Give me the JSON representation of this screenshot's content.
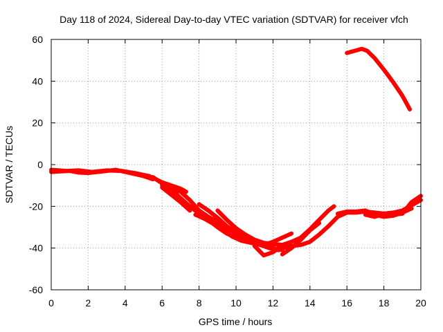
{
  "chart_data": {
    "type": "line",
    "title": "Day 118 of 2024, Sidereal Day-to-day VTEC variation (SDTVAR) for receiver vfch",
    "xlabel": "GPS time / hours",
    "ylabel": "SDTVAR / TECUs",
    "xlim": [
      0,
      20
    ],
    "ylim": [
      -60,
      60
    ],
    "x_ticks": [
      0,
      2,
      4,
      6,
      8,
      10,
      12,
      14,
      16,
      18,
      20
    ],
    "y_ticks": [
      -60,
      -40,
      -20,
      0,
      20,
      40,
      60
    ],
    "grid": true,
    "color": "#ff0000",
    "series": [
      {
        "name": "track-1",
        "points": [
          [
            0.0,
            -3.5
          ],
          [
            0.5,
            -3.2
          ],
          [
            1.0,
            -3.0
          ],
          [
            1.5,
            -3.8
          ],
          [
            2.0,
            -4.0
          ],
          [
            2.5,
            -3.5
          ],
          [
            3.0,
            -3.0
          ],
          [
            3.5,
            -2.5
          ],
          [
            4.0,
            -3.5
          ],
          [
            4.5,
            -4.5
          ],
          [
            5.0,
            -5.5
          ],
          [
            5.5,
            -7.0
          ]
        ]
      },
      {
        "name": "track-2",
        "points": [
          [
            0.0,
            -2.5
          ],
          [
            0.8,
            -3.0
          ],
          [
            1.5,
            -2.8
          ],
          [
            2.2,
            -3.5
          ],
          [
            3.0,
            -2.8
          ],
          [
            3.8,
            -3.0
          ],
          [
            4.5,
            -4.0
          ],
          [
            5.3,
            -5.5
          ],
          [
            6.0,
            -8.5
          ],
          [
            6.5,
            -10.0
          ],
          [
            7.0,
            -11.5
          ],
          [
            7.3,
            -13.0
          ]
        ]
      },
      {
        "name": "track-3",
        "points": [
          [
            5.5,
            -6.0
          ],
          [
            6.0,
            -9.0
          ],
          [
            6.5,
            -12.0
          ],
          [
            7.0,
            -16.0
          ],
          [
            7.5,
            -20.0
          ],
          [
            8.0,
            -23.5
          ],
          [
            8.5,
            -26.5
          ],
          [
            9.0,
            -30.0
          ],
          [
            9.5,
            -33.0
          ],
          [
            10.0,
            -35.0
          ],
          [
            10.5,
            -36.5
          ],
          [
            11.0,
            -37.5
          ],
          [
            11.5,
            -38.0
          ]
        ]
      },
      {
        "name": "track-4",
        "points": [
          [
            6.0,
            -10.0
          ],
          [
            6.5,
            -11.5
          ],
          [
            7.0,
            -13.0
          ],
          [
            7.5,
            -17.0
          ],
          [
            8.0,
            -22.0
          ],
          [
            8.5,
            -25.0
          ],
          [
            9.0,
            -27.5
          ],
          [
            9.5,
            -30.5
          ],
          [
            10.0,
            -33.0
          ],
          [
            10.5,
            -35.5
          ],
          [
            11.0,
            -37.0
          ],
          [
            11.5,
            -38.5
          ],
          [
            12.0,
            -40.0
          ],
          [
            12.5,
            -41.0
          ]
        ]
      },
      {
        "name": "track-5",
        "points": [
          [
            6.0,
            -11.0
          ],
          [
            6.5,
            -14.5
          ],
          [
            7.0,
            -18.0
          ],
          [
            7.5,
            -22.0
          ]
        ]
      },
      {
        "name": "track-6",
        "points": [
          [
            7.8,
            -24.0
          ],
          [
            8.3,
            -26.0
          ],
          [
            8.8,
            -28.5
          ],
          [
            9.3,
            -31.5
          ],
          [
            9.8,
            -34.5
          ],
          [
            10.3,
            -36.5
          ],
          [
            10.8,
            -37.5
          ],
          [
            11.3,
            -38.5
          ],
          [
            11.8,
            -40.0
          ],
          [
            12.3,
            -41.0
          ]
        ]
      },
      {
        "name": "track-7",
        "points": [
          [
            8.0,
            -19.0
          ],
          [
            8.5,
            -22.0
          ],
          [
            9.0,
            -25.5
          ],
          [
            9.5,
            -29.5
          ],
          [
            10.0,
            -32.5
          ],
          [
            10.5,
            -35.0
          ],
          [
            11.0,
            -36.0
          ],
          [
            11.5,
            -37.5
          ],
          [
            12.0,
            -38.0
          ],
          [
            12.5,
            -38.5
          ]
        ]
      },
      {
        "name": "track-8",
        "points": [
          [
            9.0,
            -22.0
          ],
          [
            9.5,
            -26.5
          ],
          [
            10.0,
            -30.5
          ],
          [
            10.5,
            -33.5
          ],
          [
            11.0,
            -36.0
          ],
          [
            11.5,
            -38.0
          ],
          [
            12.0,
            -39.0
          ]
        ]
      },
      {
        "name": "track-9",
        "points": [
          [
            11.0,
            -39.0
          ],
          [
            11.5,
            -43.5
          ],
          [
            12.0,
            -42.0
          ],
          [
            12.5,
            -38.5
          ],
          [
            13.0,
            -37.0
          ],
          [
            13.5,
            -35.0
          ],
          [
            14.0,
            -31.0
          ],
          [
            14.5,
            -26.5
          ],
          [
            15.0,
            -22.0
          ],
          [
            15.3,
            -20.0
          ]
        ]
      },
      {
        "name": "track-10",
        "points": [
          [
            11.5,
            -38.5
          ],
          [
            12.0,
            -37.0
          ],
          [
            12.5,
            -35.0
          ],
          [
            13.0,
            -33.0
          ]
        ]
      },
      {
        "name": "track-11",
        "points": [
          [
            12.5,
            -43.0
          ],
          [
            13.0,
            -40.0
          ],
          [
            13.5,
            -36.0
          ],
          [
            14.0,
            -31.5
          ],
          [
            14.5,
            -28.0
          ]
        ]
      },
      {
        "name": "track-12",
        "points": [
          [
            12.0,
            -41.0
          ],
          [
            12.5,
            -40.0
          ],
          [
            13.0,
            -39.0
          ],
          [
            13.5,
            -38.5
          ],
          [
            14.0,
            -37.0
          ],
          [
            14.5,
            -33.5
          ],
          [
            15.0,
            -29.5
          ],
          [
            15.5,
            -25.0
          ],
          [
            16.0,
            -23.0
          ],
          [
            16.5,
            -23.0
          ],
          [
            17.0,
            -22.5
          ],
          [
            17.5,
            -23.0
          ],
          [
            18.0,
            -23.5
          ],
          [
            18.5,
            -23.0
          ],
          [
            19.0,
            -22.0
          ],
          [
            19.5,
            -19.5
          ],
          [
            20.0,
            -17.0
          ]
        ]
      },
      {
        "name": "track-13",
        "points": [
          [
            15.5,
            -23.5
          ],
          [
            16.0,
            -22.5
          ],
          [
            16.5,
            -22.5
          ],
          [
            17.0,
            -22.0
          ],
          [
            17.5,
            -24.0
          ],
          [
            18.0,
            -25.0
          ],
          [
            18.5,
            -24.5
          ],
          [
            19.0,
            -23.0
          ],
          [
            19.5,
            -21.0
          ]
        ]
      },
      {
        "name": "track-14",
        "points": [
          [
            17.0,
            -24.0
          ],
          [
            17.5,
            -25.0
          ],
          [
            18.0,
            -23.5
          ],
          [
            18.5,
            -24.0
          ],
          [
            19.0,
            -23.5
          ],
          [
            19.5,
            -18.0
          ],
          [
            20.0,
            -15.0
          ]
        ]
      },
      {
        "name": "track-15",
        "points": [
          [
            16.0,
            53.5
          ],
          [
            16.4,
            54.5
          ],
          [
            16.8,
            55.5
          ],
          [
            17.1,
            54.5
          ],
          [
            17.5,
            51.0
          ],
          [
            18.0,
            45.5
          ],
          [
            18.5,
            39.5
          ],
          [
            19.0,
            33.0
          ],
          [
            19.4,
            26.5
          ]
        ]
      }
    ]
  }
}
